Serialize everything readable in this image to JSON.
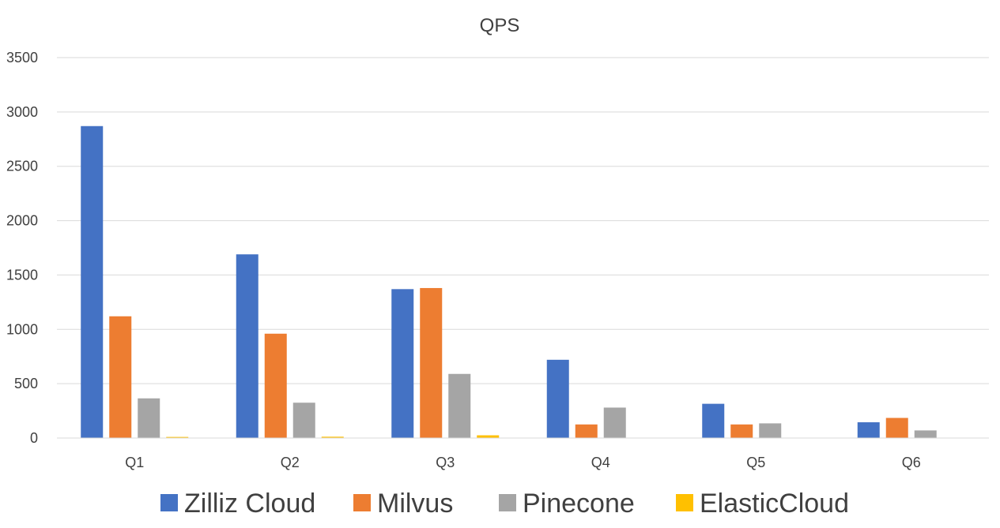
{
  "chart_data": {
    "type": "bar",
    "title": "QPS",
    "xlabel": "",
    "ylabel": "",
    "categories": [
      "Q1",
      "Q2",
      "Q3",
      "Q4",
      "Q5",
      "Q6"
    ],
    "ylim": [
      0,
      3500
    ],
    "yticks": [
      0,
      500,
      1000,
      1500,
      2000,
      2500,
      3000,
      3500
    ],
    "grid": true,
    "legend_position": "bottom",
    "series": [
      {
        "name": "Zilliz Cloud",
        "color": "#4472c4",
        "values": [
          2870,
          1690,
          1370,
          720,
          315,
          145
        ]
      },
      {
        "name": "Milvus",
        "color": "#ed7d31",
        "values": [
          1120,
          960,
          1380,
          125,
          125,
          185
        ]
      },
      {
        "name": "Pinecone",
        "color": "#a5a5a5",
        "values": [
          365,
          325,
          590,
          280,
          135,
          70
        ]
      },
      {
        "name": "ElasticCloud",
        "color": "#ffc000",
        "values": [
          10,
          12,
          25,
          0,
          0,
          0
        ]
      }
    ]
  }
}
